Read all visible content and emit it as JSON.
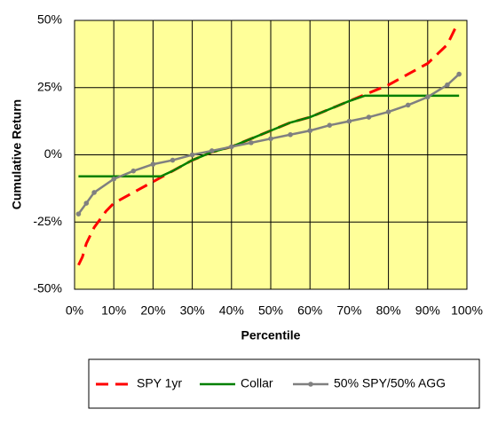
{
  "chart_data": {
    "type": "line",
    "x_label": "Percentile",
    "y_label": "Cumulative Return",
    "xlim": [
      0,
      100
    ],
    "ylim": [
      -50,
      50
    ],
    "xticks": [
      {
        "value": 0,
        "label": "0%"
      },
      {
        "value": 10,
        "label": "10%"
      },
      {
        "value": 20,
        "label": "20%"
      },
      {
        "value": 30,
        "label": "30%"
      },
      {
        "value": 40,
        "label": "40%"
      },
      {
        "value": 50,
        "label": "50%"
      },
      {
        "value": 60,
        "label": "60%"
      },
      {
        "value": 70,
        "label": "70%"
      },
      {
        "value": 80,
        "label": "80%"
      },
      {
        "value": 90,
        "label": "90%"
      },
      {
        "value": 100,
        "label": "100%"
      }
    ],
    "yticks": [
      {
        "value": -50,
        "label": "-50%"
      },
      {
        "value": -25,
        "label": "-25%"
      },
      {
        "value": 0,
        "label": "0%"
      },
      {
        "value": 25,
        "label": "25%"
      },
      {
        "value": 50,
        "label": "50%"
      }
    ],
    "grid": true,
    "legend": "bottom",
    "plot_background": "#ffff99",
    "series": [
      {
        "name": "SPY 1yr",
        "color": "#ff0000",
        "dash": true,
        "markers": false,
        "x": [
          1,
          2,
          3,
          5,
          8,
          10,
          15,
          20,
          25,
          30,
          35,
          40,
          45,
          50,
          55,
          60,
          65,
          70,
          75,
          80,
          85,
          90,
          95,
          97
        ],
        "values": [
          -41,
          -38,
          -33,
          -27,
          -21,
          -18,
          -14,
          -10,
          -6,
          -2,
          1,
          3,
          6,
          9,
          12,
          14,
          17,
          20,
          23,
          26,
          30,
          34,
          41,
          47
        ]
      },
      {
        "name": "Collar",
        "color": "#008000",
        "dash": false,
        "markers": false,
        "x": [
          1,
          22,
          25,
          30,
          35,
          40,
          45,
          50,
          55,
          60,
          65,
          70,
          74,
          98
        ],
        "values": [
          -8,
          -8,
          -6,
          -2,
          1,
          3,
          6,
          9,
          12,
          14,
          17,
          20,
          22,
          22
        ]
      },
      {
        "name": "50% SPY/50% AGG",
        "color": "#808080",
        "dash": false,
        "markers": true,
        "x": [
          1,
          3,
          5,
          10,
          15,
          20,
          25,
          30,
          35,
          40,
          45,
          50,
          55,
          60,
          65,
          70,
          75,
          80,
          85,
          90,
          95,
          98
        ],
        "values": [
          -22,
          -18,
          -14,
          -9,
          -6,
          -3.5,
          -2,
          0,
          1.5,
          3,
          4.5,
          6,
          7.5,
          9,
          11,
          12.5,
          14,
          16,
          18.5,
          21.5,
          26,
          30
        ]
      }
    ]
  }
}
